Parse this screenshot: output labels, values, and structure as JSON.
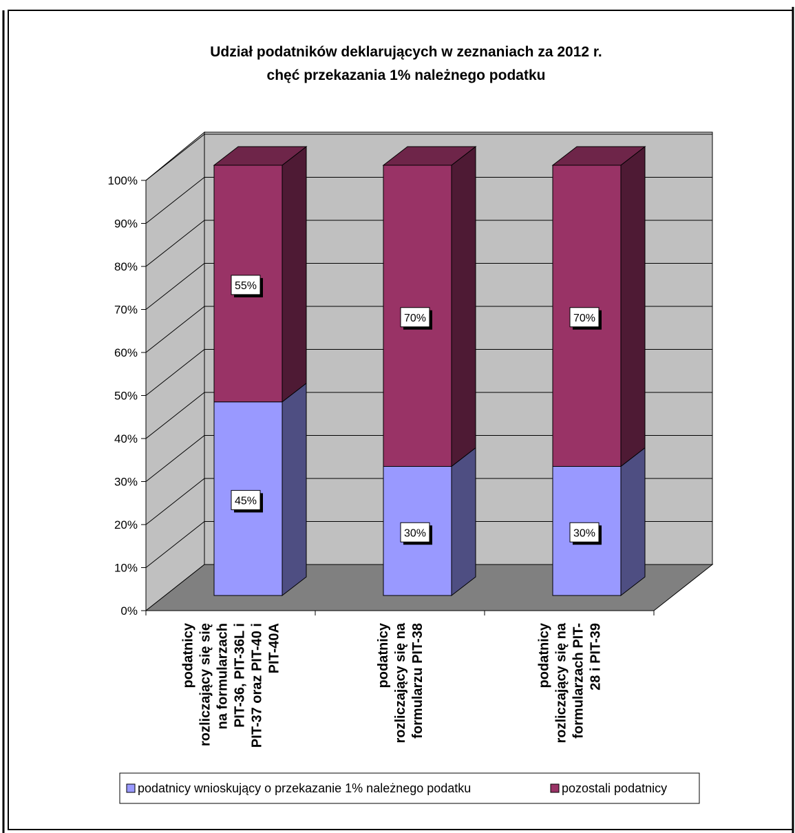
{
  "chart_data": {
    "type": "bar",
    "stacked": true,
    "percent_stacked": true,
    "three_d": true,
    "title": [
      "Udział podatników deklarujących w zeznaniach za 2012 r.",
      "chęć przekazania 1% należnego podatku"
    ],
    "categories": [
      [
        "podatnicy",
        "rozliczający się się",
        "na formularzach",
        "PIT-36, PIT-36L i",
        "PIT-37 oraz PIT-40 i",
        "PIT-40A"
      ],
      [
        "podatnicy",
        "rozliczający  się na",
        "formularzu PIT-38"
      ],
      [
        "podatnicy",
        "rozliczający się na",
        "formularzach PIT-",
        "28 i PIT-39"
      ]
    ],
    "series": [
      {
        "name": "podatnicy wnioskujący o przekazanie 1% należnego podatku",
        "values": [
          45,
          30,
          30
        ],
        "labels": [
          "45%",
          "30%",
          "30%"
        ],
        "color": "#9999ff"
      },
      {
        "name": "pozostali podatnicy",
        "values": [
          55,
          70,
          70
        ],
        "labels": [
          "55%",
          "70%",
          "70%"
        ],
        "color": "#993366"
      }
    ],
    "yticks": [
      "0%",
      "10%",
      "20%",
      "30%",
      "40%",
      "50%",
      "60%",
      "70%",
      "80%",
      "90%",
      "100%"
    ],
    "ylim": [
      0,
      100
    ],
    "grid": true,
    "legend_position": "bottom",
    "colors": {
      "wall": "#c0c0c0",
      "floor": "#808080"
    }
  }
}
